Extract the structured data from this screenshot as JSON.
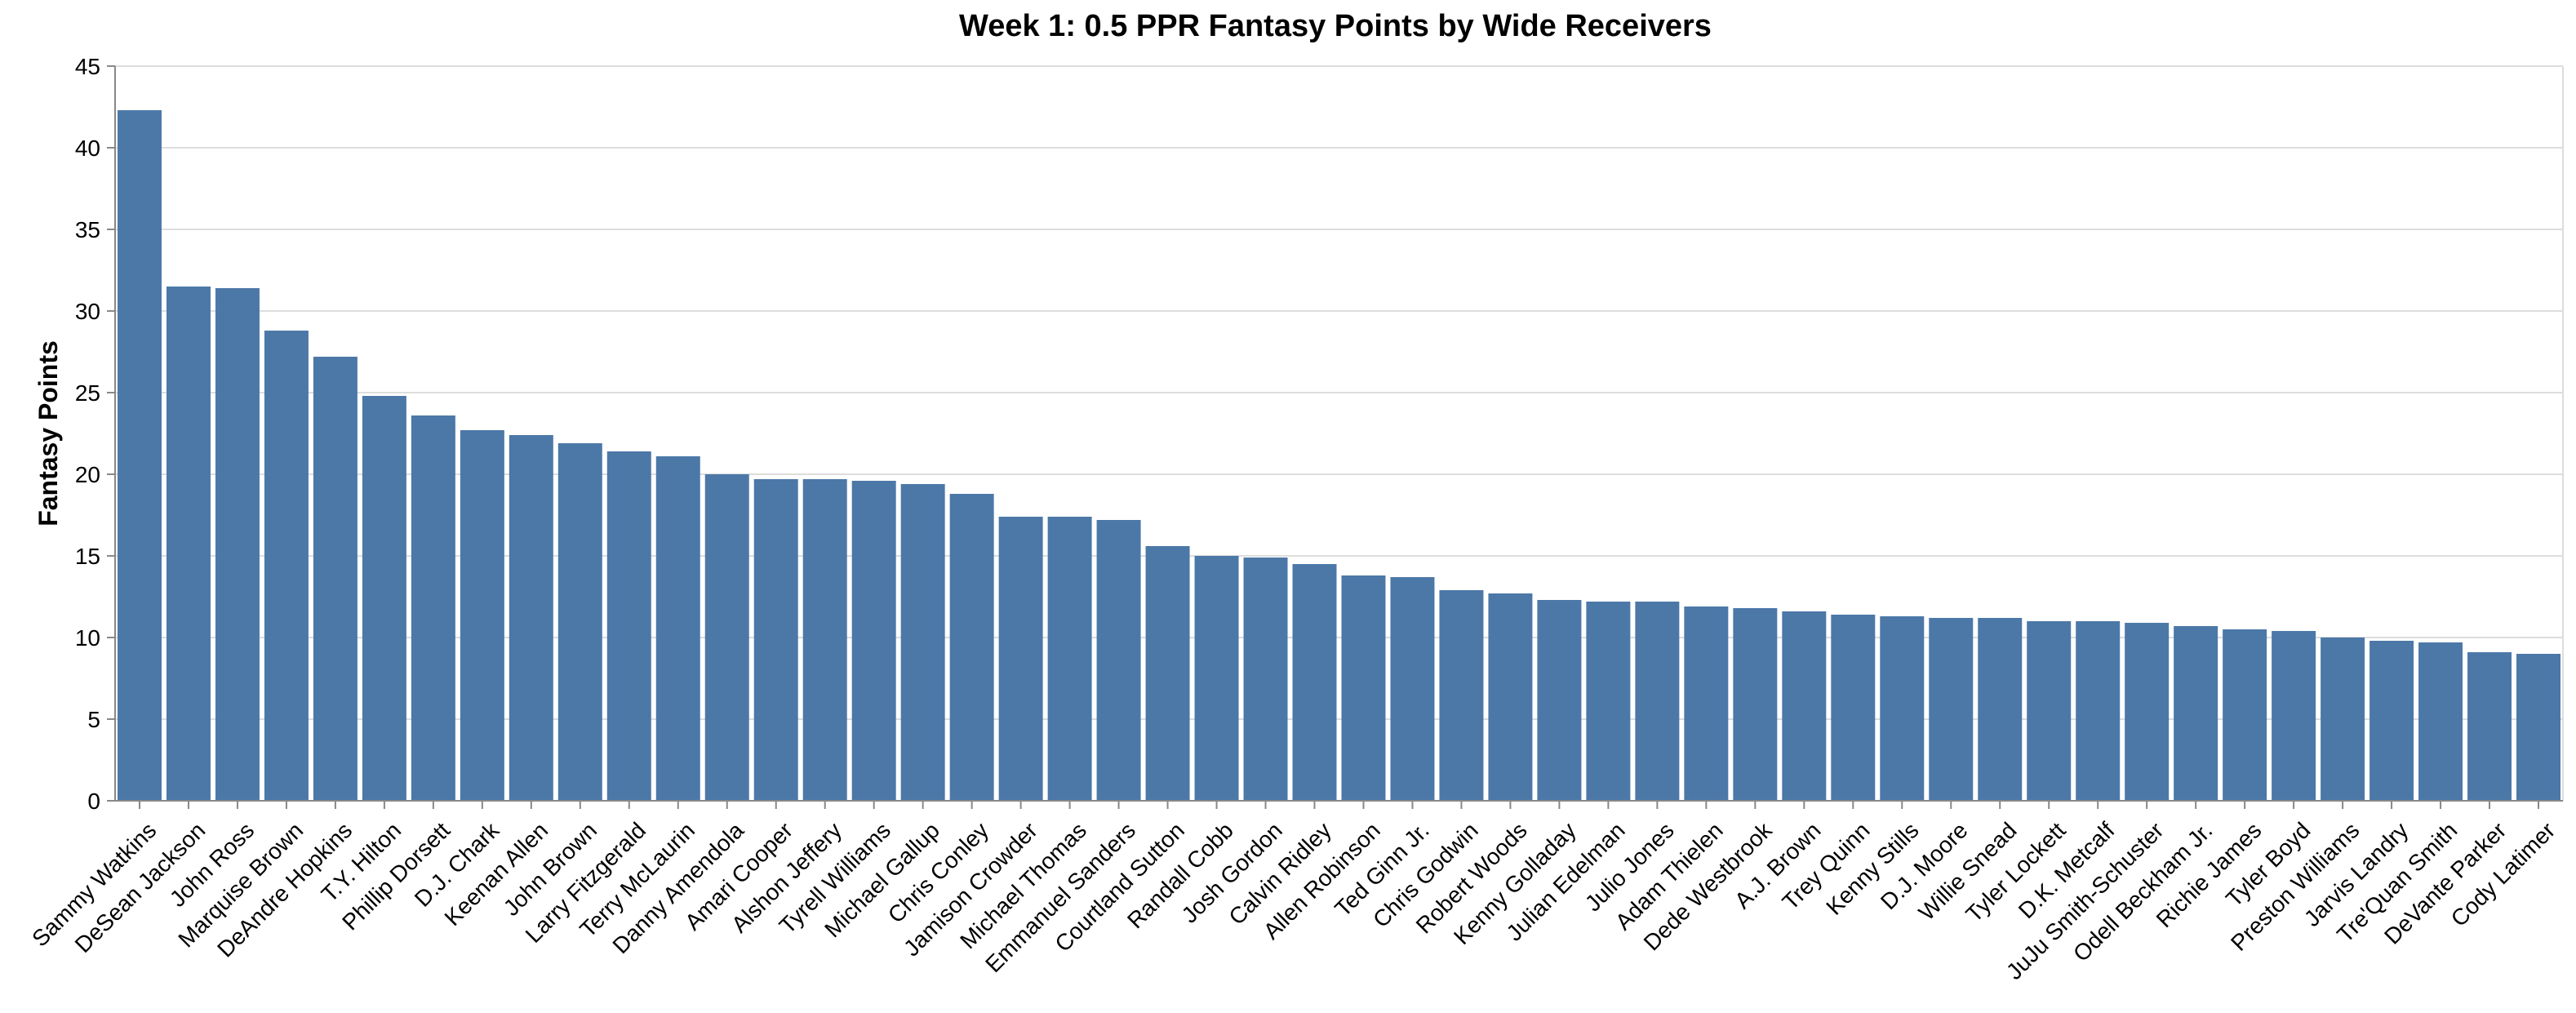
{
  "chart_data": {
    "type": "bar",
    "title": "Week 1: 0.5 PPR Fantasy Points by Wide Receivers",
    "xlabel": "",
    "ylabel": "Fantasy Points",
    "ylim": [
      0,
      45
    ],
    "yticks": [
      0,
      5,
      10,
      15,
      20,
      25,
      30,
      35,
      40,
      45
    ],
    "grid": true,
    "bar_color": "#4c78a8",
    "categories": [
      "Sammy Watkins",
      "DeSean Jackson",
      "John Ross",
      "Marquise Brown",
      "DeAndre Hopkins",
      "T.Y. Hilton",
      "Phillip Dorsett",
      "D.J. Chark",
      "Keenan Allen",
      "John Brown",
      "Larry Fitzgerald",
      "Terry McLaurin",
      "Danny Amendola",
      "Amari Cooper",
      "Alshon Jeffery",
      "Tyrell Williams",
      "Michael Gallup",
      "Chris Conley",
      "Jamison Crowder",
      "Michael Thomas",
      "Emmanuel Sanders",
      "Courtland Sutton",
      "Randall Cobb",
      "Josh Gordon",
      "Calvin Ridley",
      "Allen Robinson",
      "Ted Ginn Jr.",
      "Chris Godwin",
      "Robert Woods",
      "Kenny Golladay",
      "Julian Edelman",
      "Julio Jones",
      "Adam Thielen",
      "Dede Westbrook",
      "A.J. Brown",
      "Trey Quinn",
      "Kenny Stills",
      "D.J. Moore",
      "Willie Snead",
      "Tyler Lockett",
      "D.K. Metcalf",
      "JuJu Smith-Schuster",
      "Odell Beckham Jr.",
      "Richie James",
      "Tyler Boyd",
      "Preston Williams",
      "Jarvis Landry",
      "Tre'Quan Smith",
      "DeVante Parker",
      "Cody Latimer"
    ],
    "values": [
      42.3,
      31.5,
      31.4,
      28.8,
      27.2,
      24.8,
      23.6,
      22.7,
      22.4,
      21.9,
      21.4,
      21.1,
      20.0,
      19.7,
      19.7,
      19.6,
      19.4,
      18.8,
      17.4,
      17.4,
      17.2,
      15.6,
      15.0,
      14.9,
      14.5,
      13.8,
      13.7,
      12.9,
      12.7,
      12.3,
      12.2,
      12.2,
      11.9,
      11.8,
      11.6,
      11.4,
      11.3,
      11.2,
      11.2,
      11.0,
      11.0,
      10.9,
      10.7,
      10.5,
      10.4,
      10.0,
      9.8,
      9.7,
      9.1,
      9.0
    ]
  }
}
